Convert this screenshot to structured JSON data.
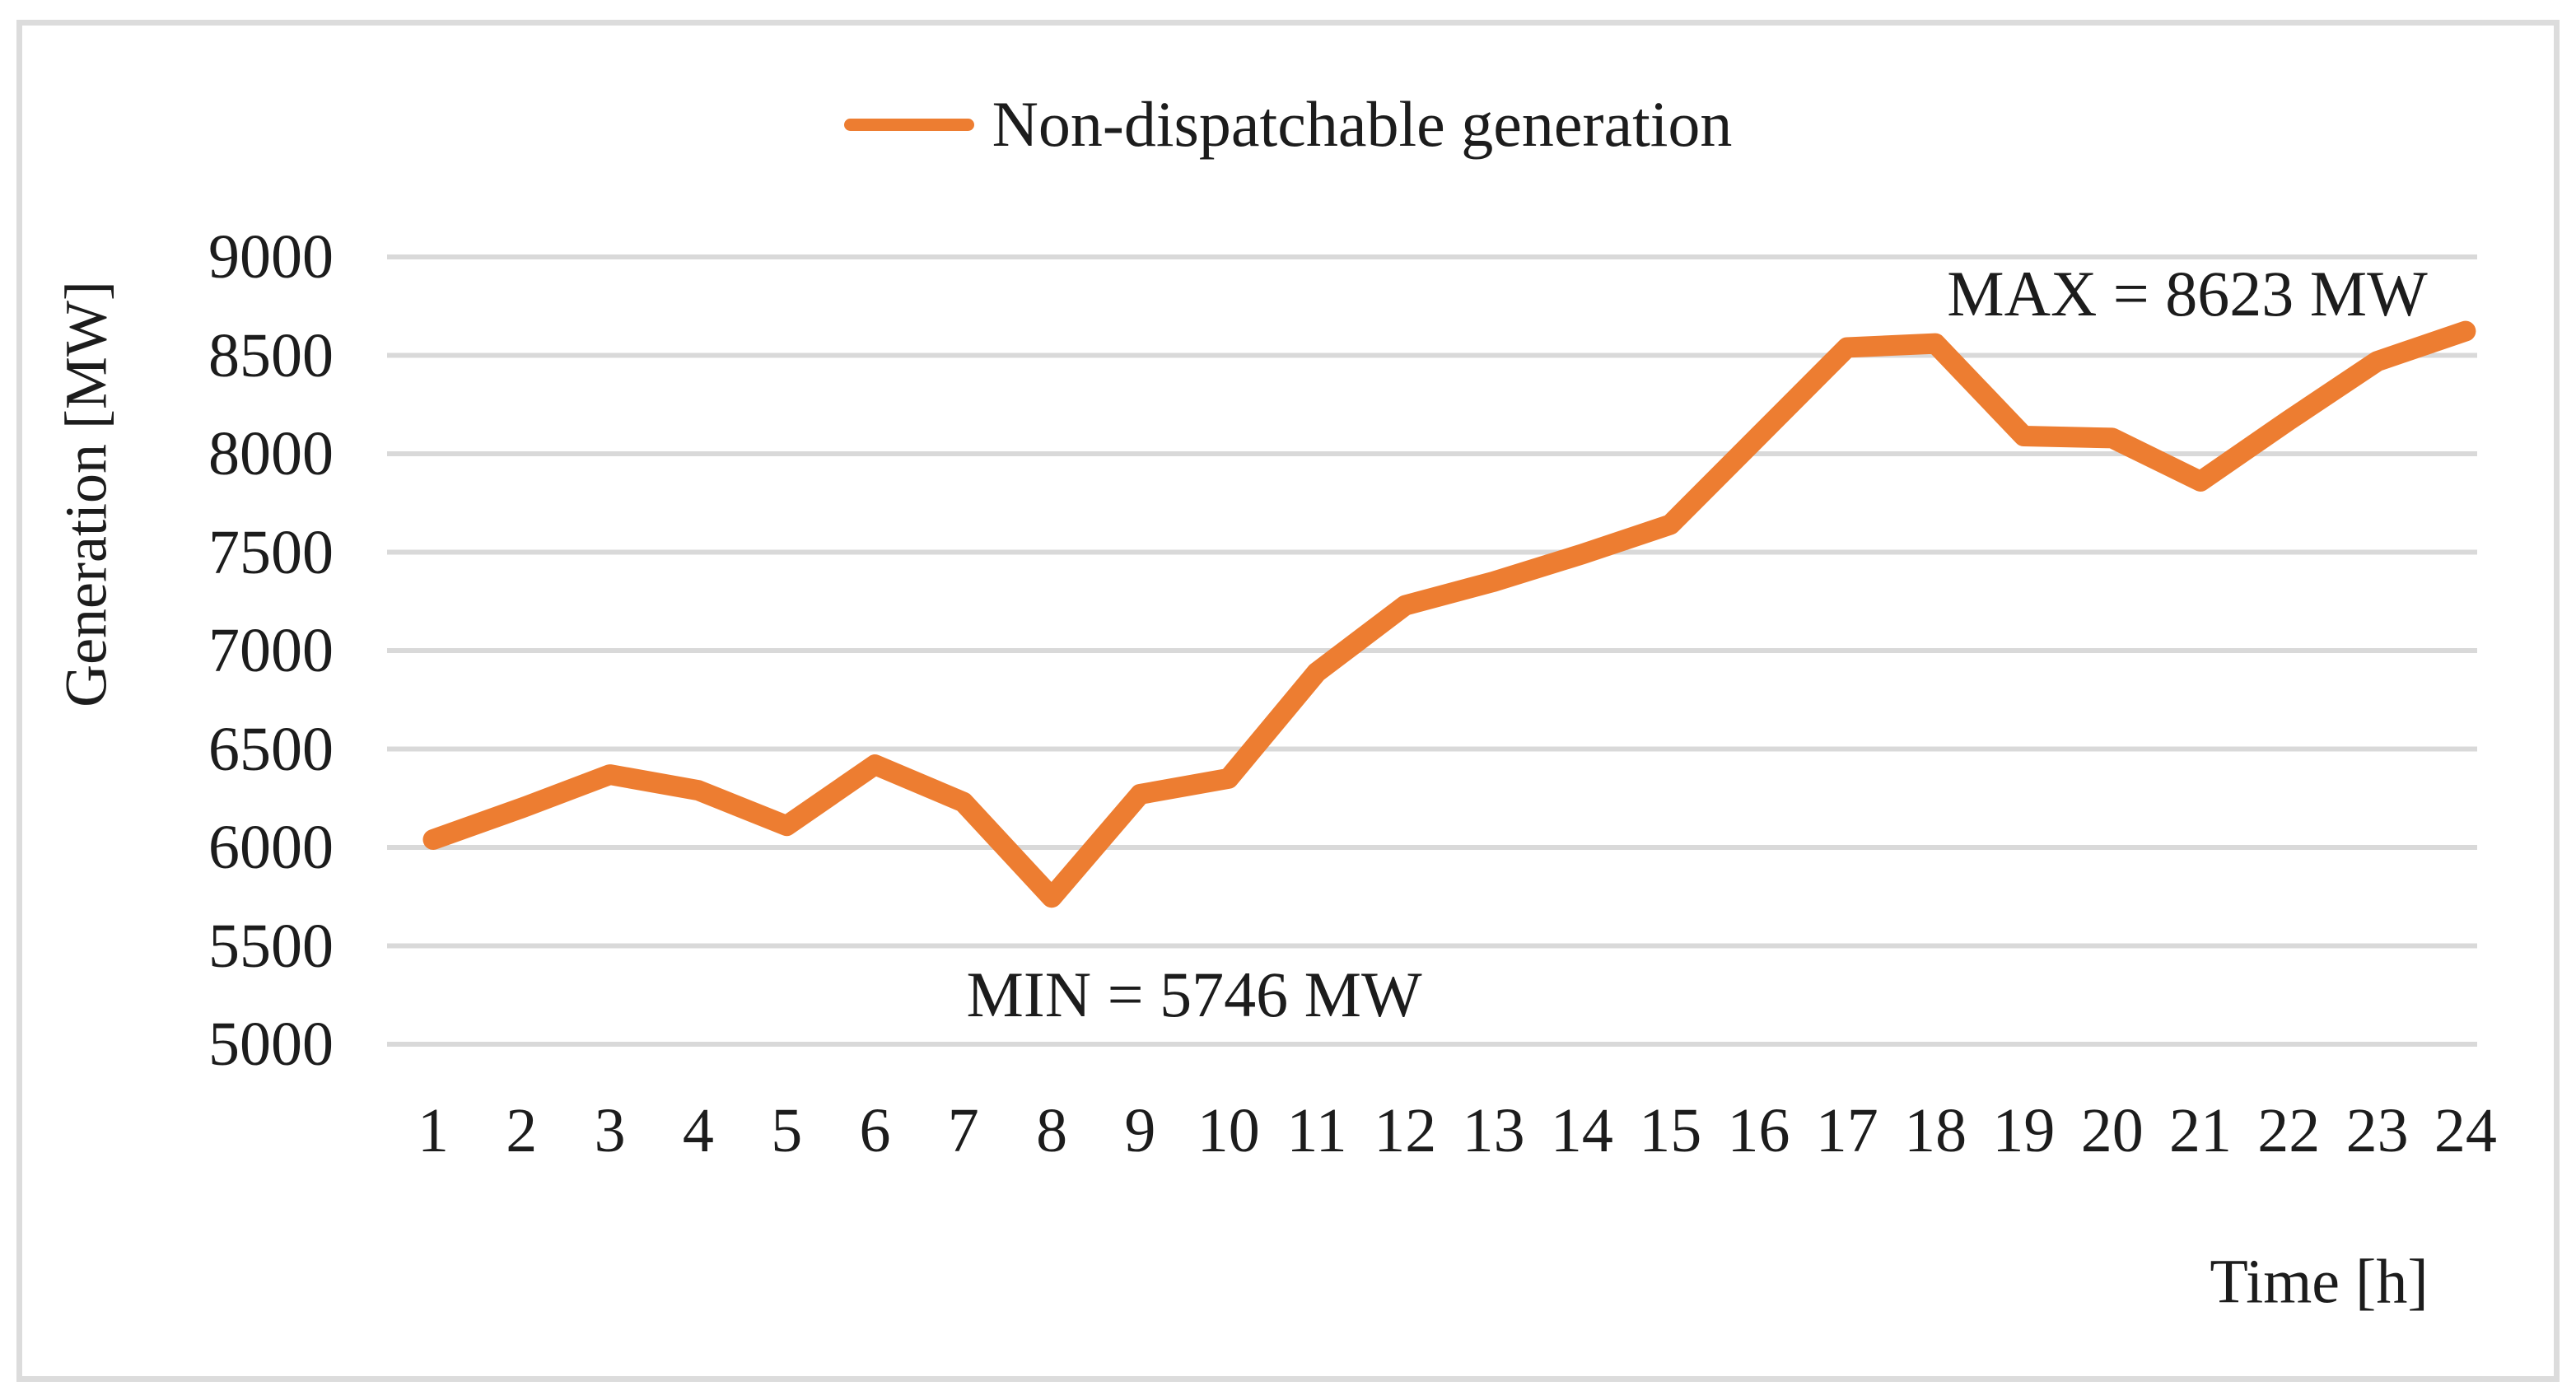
{
  "legend": {
    "label": "Non-dispatchable generation",
    "swatch_color": "#ED7D31"
  },
  "axes": {
    "y_title": "Generation [MW]",
    "x_title": "Time [h]",
    "y_ticks": [
      "9000",
      "8500",
      "8000",
      "7500",
      "7000",
      "6500",
      "6000",
      "5500",
      "5000"
    ],
    "x_ticks": [
      "1",
      "2",
      "3",
      "4",
      "5",
      "6",
      "7",
      "8",
      "9",
      "10",
      "11",
      "12",
      "13",
      "14",
      "15",
      "16",
      "17",
      "18",
      "19",
      "20",
      "21",
      "22",
      "23",
      "24"
    ]
  },
  "annotations": {
    "max": "MAX = 8623 MW",
    "min": "MIN = 5746 MW"
  },
  "chart_data": {
    "type": "line",
    "title": "",
    "xlabel": "Time [h]",
    "ylabel": "Generation [MW]",
    "x": [
      1,
      2,
      3,
      4,
      5,
      6,
      7,
      8,
      9,
      10,
      11,
      12,
      13,
      14,
      15,
      16,
      17,
      18,
      19,
      20,
      21,
      22,
      23,
      24
    ],
    "series": [
      {
        "name": "Non-dispatchable generation",
        "values": [
          6040,
          6200,
          6370,
          6290,
          6110,
          6420,
          6230,
          5746,
          6270,
          6350,
          6890,
          7230,
          7350,
          7490,
          7640,
          8090,
          8540,
          8560,
          8090,
          8080,
          7860,
          8170,
          8470,
          8623
        ]
      }
    ],
    "ylim": [
      5000,
      9000
    ],
    "ytick_step": 500,
    "grid": "horizontal",
    "legend_position": "top-center",
    "line_color": "#ED7D31",
    "grid_color": "#D9D9D9",
    "annotations": [
      {
        "text": "MAX = 8623 MW",
        "x": 24,
        "y": 8623
      },
      {
        "text": "MIN = 5746 MW",
        "x": 8,
        "y": 5746
      }
    ]
  }
}
